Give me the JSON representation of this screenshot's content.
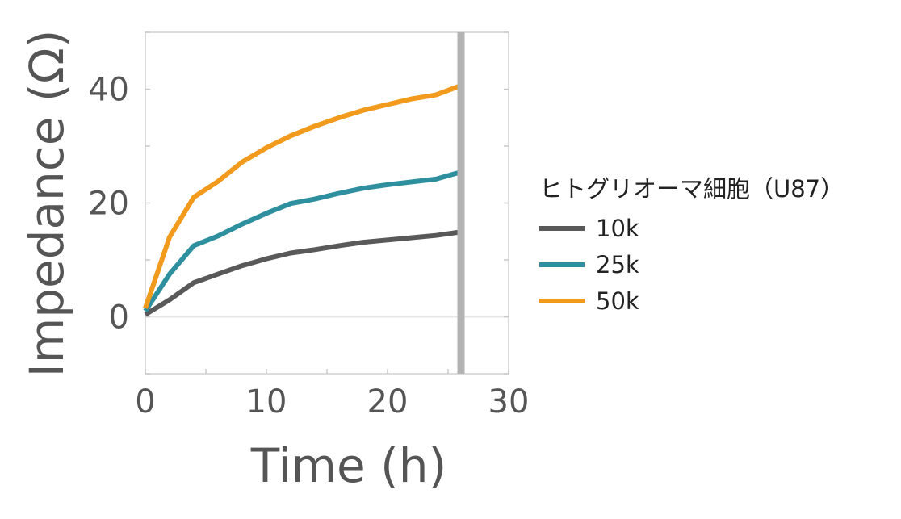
{
  "chart_data": {
    "type": "line",
    "xlabel": "Time (h)",
    "ylabel": "Impedance (Ω)",
    "xlim": [
      0,
      30
    ],
    "ylim": [
      -10,
      50
    ],
    "xticks": [
      0,
      10,
      20,
      30
    ],
    "yticks": [
      0,
      20,
      40
    ],
    "grid": false,
    "zero_line": 0,
    "marker_line_x": 26,
    "legend_title": "ヒトグリオーマ細胞（U87）",
    "legend_position": "right",
    "x": [
      0,
      2,
      4,
      6,
      8,
      10,
      12,
      14,
      16,
      18,
      20,
      22,
      24,
      26
    ],
    "series": [
      {
        "name": "10k",
        "color": "#595959",
        "values": [
          0.4,
          3.0,
          6.0,
          7.5,
          9.0,
          10.2,
          11.2,
          11.8,
          12.5,
          13.1,
          13.5,
          13.9,
          14.3,
          14.9
        ]
      },
      {
        "name": "25k",
        "color": "#2e8f9e",
        "values": [
          1.0,
          7.5,
          12.5,
          14.2,
          16.3,
          18.2,
          19.9,
          20.7,
          21.7,
          22.6,
          23.2,
          23.7,
          24.2,
          25.4
        ]
      },
      {
        "name": "50k",
        "color": "#f29a1c",
        "values": [
          1.5,
          14.0,
          21.0,
          23.8,
          27.2,
          29.7,
          31.8,
          33.5,
          35.0,
          36.3,
          37.3,
          38.3,
          39.0,
          40.6
        ]
      }
    ]
  }
}
